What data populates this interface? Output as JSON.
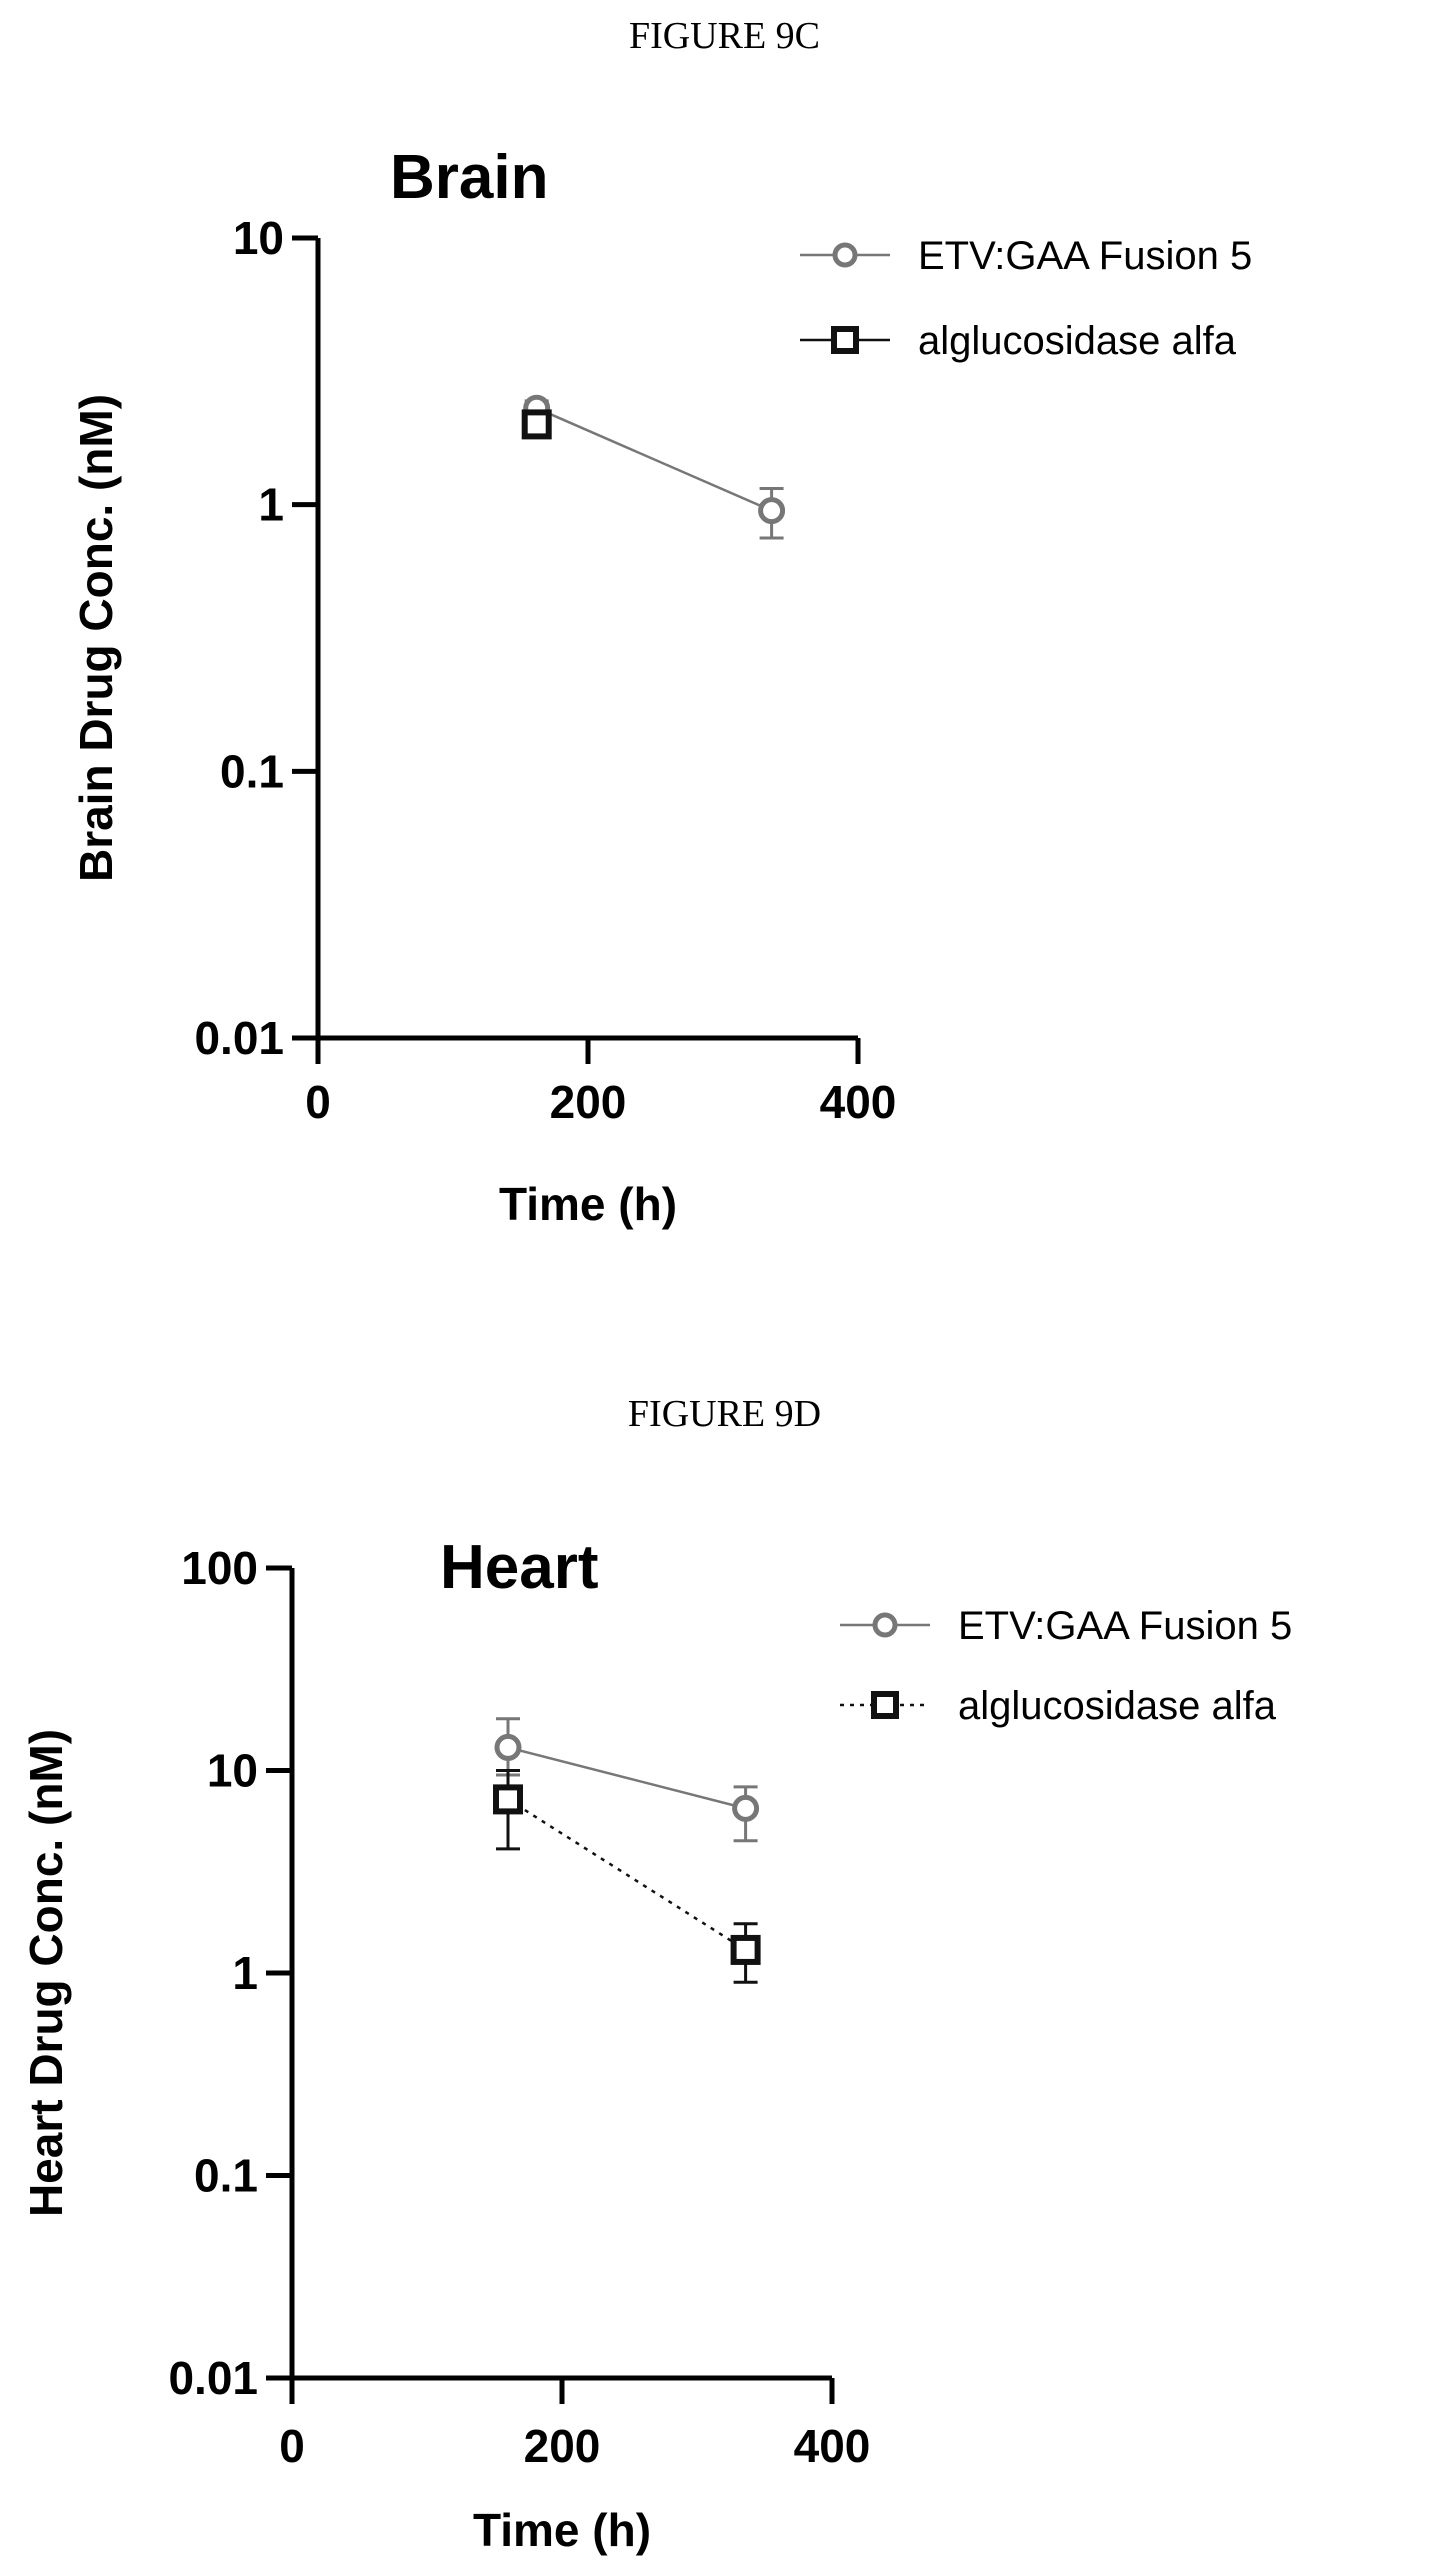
{
  "captions": [
    "FIGURE 9C",
    "FIGURE 9D"
  ],
  "chart_data": [
    {
      "type": "scatter",
      "title": "Brain",
      "xlabel": "Time (h)",
      "ylabel": "Brain Drug Conc. (nM)",
      "xlim": [
        0,
        400
      ],
      "ylim": [
        0.01,
        10
      ],
      "yscale": "log",
      "xticks": [
        "0",
        "200",
        "400"
      ],
      "yticks": [
        "10",
        "1",
        "0.1",
        "0.01"
      ],
      "legend_position": "top-right",
      "series": [
        {
          "name": "ETV:GAA Fusion 5",
          "marker": "circle",
          "line": "solid",
          "color": "#777777",
          "x": [
            162,
            336
          ],
          "y": [
            2.3,
            0.95
          ],
          "err_low": [
            2.15,
            0.75
          ],
          "err_high": [
            2.45,
            1.15
          ]
        },
        {
          "name": "alglucosidase alfa",
          "marker": "square",
          "line": "solid",
          "color": "#111111",
          "x": [
            162
          ],
          "y": [
            2.0
          ],
          "err_low": [
            1.85
          ],
          "err_high": [
            2.15
          ]
        }
      ]
    },
    {
      "type": "scatter",
      "title": "Heart",
      "xlabel": "Time (h)",
      "ylabel": "Heart Drug Conc. (nM)",
      "xlim": [
        0,
        400
      ],
      "ylim": [
        0.01,
        100
      ],
      "yscale": "log",
      "xticks": [
        "0",
        "200",
        "400"
      ],
      "yticks": [
        "100",
        "10",
        "1",
        "0.1",
        "0.01"
      ],
      "legend_position": "top-right",
      "series": [
        {
          "name": "ETV:GAA  Fusion 5",
          "marker": "circle",
          "line": "solid",
          "color": "#777777",
          "x": [
            160,
            336
          ],
          "y": [
            13.0,
            6.5
          ],
          "err_low": [
            9.5,
            4.5
          ],
          "err_high": [
            18.0,
            8.3
          ]
        },
        {
          "name": "alglucosidase alfa",
          "marker": "square",
          "line": "dotted",
          "color": "#111111",
          "x": [
            160,
            336
          ],
          "y": [
            7.2,
            1.3
          ],
          "err_low": [
            4.1,
            0.9
          ],
          "err_high": [
            10.0,
            1.75
          ]
        }
      ]
    }
  ]
}
